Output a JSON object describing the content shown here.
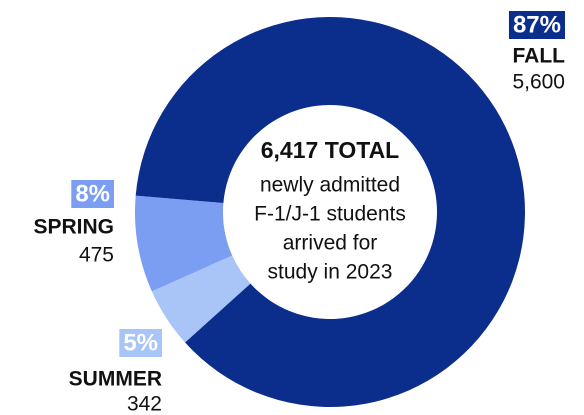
{
  "chart_data": {
    "type": "donut",
    "categories": [
      "FALL",
      "SPRING",
      "SUMMER"
    ],
    "values": [
      87,
      8,
      5
    ],
    "value_labels": [
      "87%",
      "8%",
      "5%"
    ],
    "counts": [
      5600,
      475,
      342
    ],
    "count_labels": [
      "5,600",
      "475",
      "342"
    ],
    "colors": [
      "#0b2d8c",
      "#7b9ef2",
      "#a9c4f6"
    ],
    "center_text": [
      "6,417 TOTAL",
      "newly admitted",
      "F-1/J-1 students",
      "arrived for",
      "study in 2023"
    ]
  }
}
